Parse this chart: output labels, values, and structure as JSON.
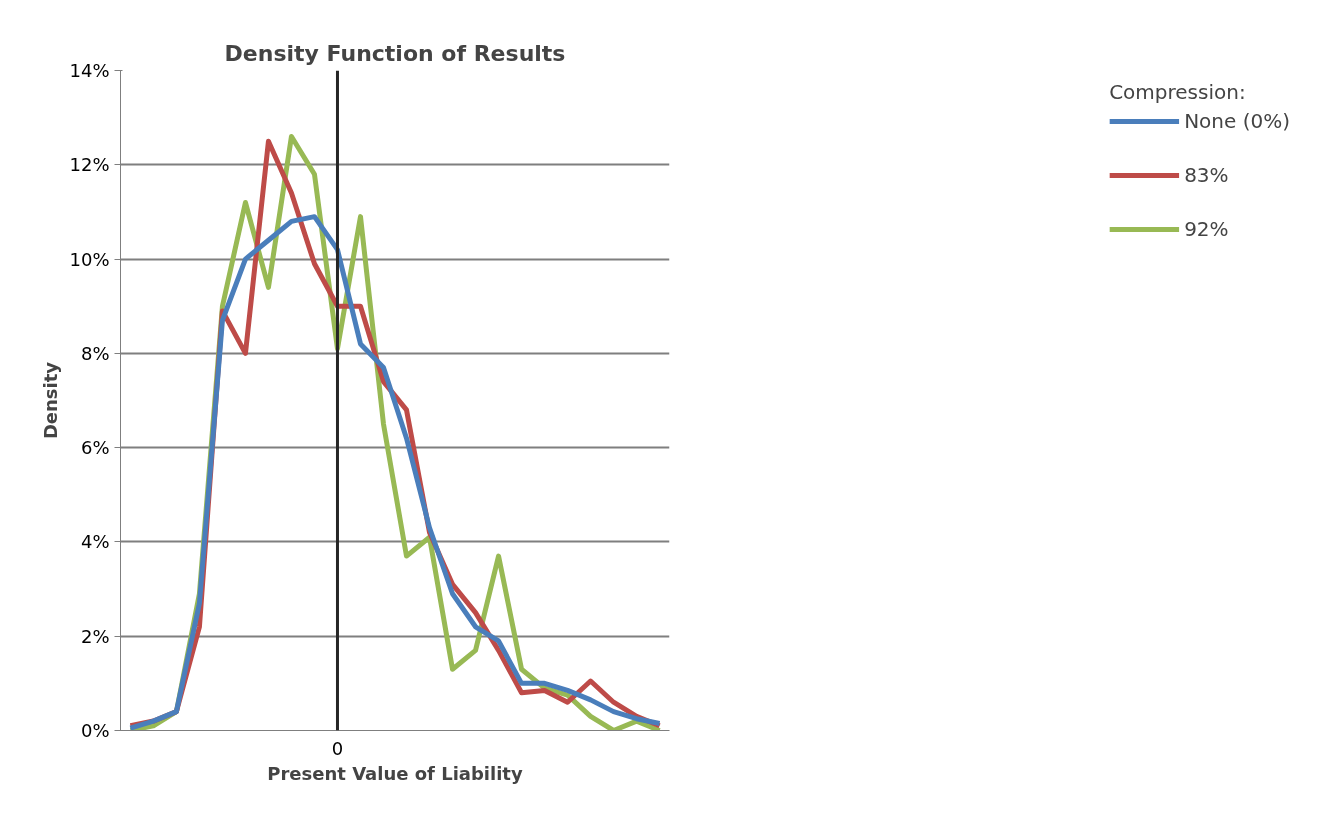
{
  "chart_data": {
    "type": "line",
    "title": "Density Function of Results",
    "xlabel": "Present Value of Liability",
    "ylabel": "Density",
    "legend_title": "Compression:",
    "categories": [
      null,
      null,
      null,
      null,
      null,
      null,
      null,
      null,
      null,
      "0",
      null,
      null,
      null,
      null,
      null,
      null,
      null,
      null,
      null,
      null,
      null,
      null,
      null,
      null
    ],
    "series": [
      {
        "name": "None (0%)",
        "color": "#4a7ebb",
        "values": [
          0.05,
          0.2,
          0.4,
          2.7,
          8.7,
          10.0,
          10.4,
          10.8,
          10.9,
          10.2,
          8.2,
          7.7,
          6.2,
          4.3,
          2.9,
          2.2,
          1.9,
          1.0,
          1.0,
          0.85,
          0.65,
          0.4,
          0.25,
          0.15
        ]
      },
      {
        "name": "83%",
        "color": "#be4b48",
        "values": [
          0.1,
          0.2,
          0.4,
          2.2,
          8.9,
          8.0,
          12.5,
          11.4,
          9.9,
          9.0,
          9.0,
          7.4,
          6.8,
          4.2,
          3.1,
          2.5,
          1.7,
          0.8,
          0.85,
          0.6,
          1.05,
          0.6,
          0.3,
          0.1
        ]
      },
      {
        "name": "92%",
        "color": "#98b954",
        "values": [
          0.0,
          0.1,
          0.4,
          2.9,
          9.0,
          11.2,
          9.4,
          12.6,
          11.8,
          8.1,
          10.9,
          6.5,
          3.7,
          4.1,
          1.3,
          1.7,
          3.7,
          1.3,
          0.9,
          0.75,
          0.3,
          0.0,
          0.2,
          0.0
        ]
      }
    ],
    "ylim": [
      0,
      14
    ],
    "yticks": [
      {
        "value": 0,
        "label": "0%"
      },
      {
        "value": 2,
        "label": "2%"
      },
      {
        "value": 4,
        "label": "4%"
      },
      {
        "value": 6,
        "label": "6%"
      },
      {
        "value": 8,
        "label": "8%"
      },
      {
        "value": 10,
        "label": "10%"
      },
      {
        "value": 12,
        "label": "12%"
      },
      {
        "value": 14,
        "label": "14%"
      }
    ],
    "ref_lines": [
      {
        "axis": "x",
        "value": "0",
        "color": "#262626"
      }
    ],
    "grid": "y",
    "legend": "right",
    "line_style": "solid",
    "marker": "none"
  }
}
